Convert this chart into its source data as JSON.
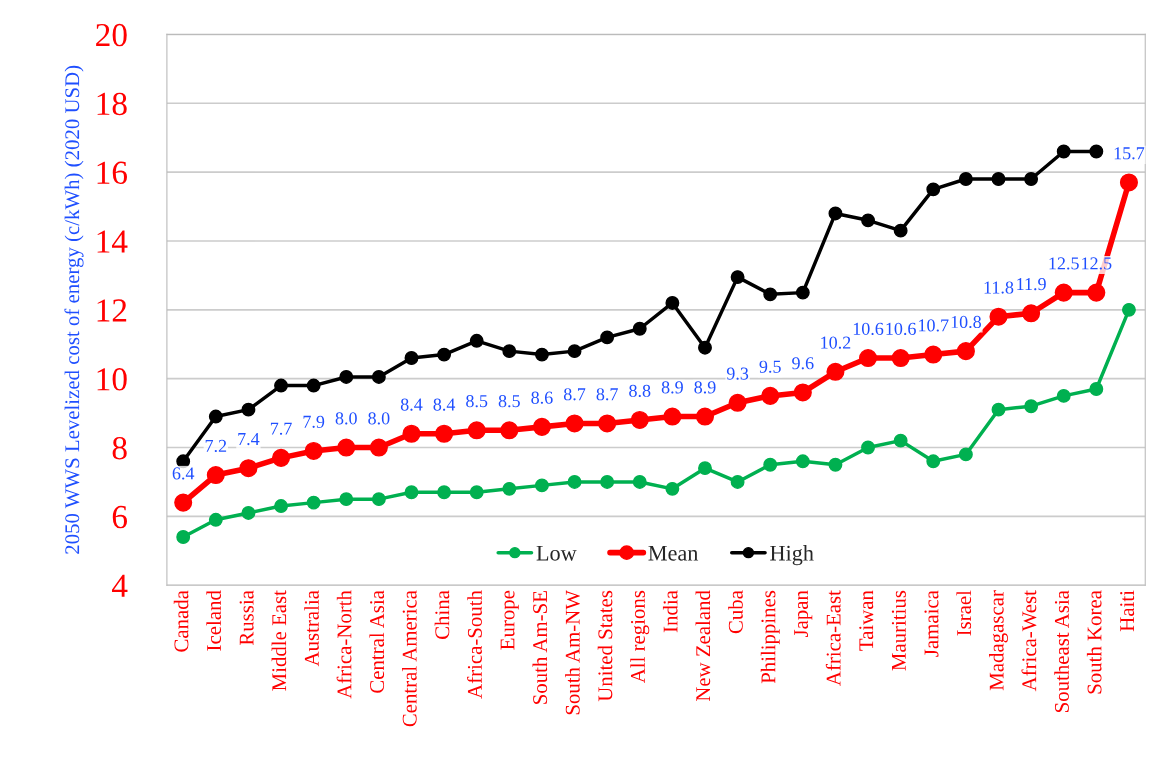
{
  "chart_data": {
    "type": "line",
    "ylabel": "2050 WWS Levelized cost of energy (c/kWh) (2020 USD)",
    "categories": [
      "Canada",
      "Iceland",
      "Russia",
      "Middle East",
      "Australia",
      "Africa-North",
      "Central Asia",
      "Central America",
      "China",
      "Africa-South",
      "Europe",
      "South Am-SE",
      "South Am-NW",
      "United States",
      "All regions",
      "India",
      "New Zealand",
      "Cuba",
      "Philippines",
      "Japan",
      "Africa-East",
      "Taiwan",
      "Mauritius",
      "Jamaica",
      "Israel",
      "Madagascar",
      "Africa-West",
      "Southeast Asia",
      "South Korea",
      "Haiti"
    ],
    "series": [
      {
        "name": "Low",
        "color": "#00b050",
        "values": [
          5.4,
          5.9,
          6.1,
          6.3,
          6.4,
          6.5,
          6.5,
          6.7,
          6.7,
          6.7,
          6.8,
          6.9,
          7.0,
          7.0,
          7.0,
          6.8,
          7.4,
          7.0,
          7.5,
          7.6,
          7.5,
          8.0,
          8.2,
          7.6,
          7.8,
          9.1,
          9.2,
          9.5,
          9.7,
          12.0
        ]
      },
      {
        "name": "Mean",
        "color": "#ff0000",
        "values": [
          6.4,
          7.2,
          7.4,
          7.7,
          7.9,
          8.0,
          8.0,
          8.4,
          8.4,
          8.5,
          8.5,
          8.6,
          8.7,
          8.7,
          8.8,
          8.9,
          8.9,
          9.3,
          9.5,
          9.6,
          10.2,
          10.6,
          10.6,
          10.7,
          10.8,
          11.8,
          11.9,
          12.5,
          12.5,
          15.7
        ],
        "value_labels": [
          "6.4",
          "7.2",
          "7.4",
          "7.7",
          "7.9",
          "8.0",
          "8.0",
          "8.4",
          "8.4",
          "8.5",
          "8.5",
          "8.6",
          "8.7",
          "8.7",
          "8.8",
          "8.9",
          "8.9",
          "9.3",
          "9.5",
          "9.6",
          "10.2",
          "10.6",
          "10.6",
          "10.7",
          "10.8",
          "11.8",
          "11.9",
          "12.5",
          "12.5",
          "15.7"
        ]
      },
      {
        "name": "High",
        "color": "#000000",
        "values": [
          7.6,
          8.9,
          9.1,
          9.8,
          9.8,
          10.05,
          10.05,
          10.6,
          10.7,
          11.1,
          10.8,
          10.7,
          10.8,
          11.2,
          11.45,
          12.2,
          10.9,
          12.95,
          12.45,
          12.5,
          14.8,
          14.6,
          14.3,
          15.5,
          15.8,
          15.8,
          15.8,
          16.6,
          16.6,
          null
        ]
      }
    ],
    "ylim": [
      4,
      20
    ],
    "yticks": [
      4,
      6,
      8,
      10,
      12,
      14,
      16,
      18,
      20
    ],
    "grid": "y",
    "legend": "bottom",
    "marker": "circle",
    "line_style": "solid"
  }
}
